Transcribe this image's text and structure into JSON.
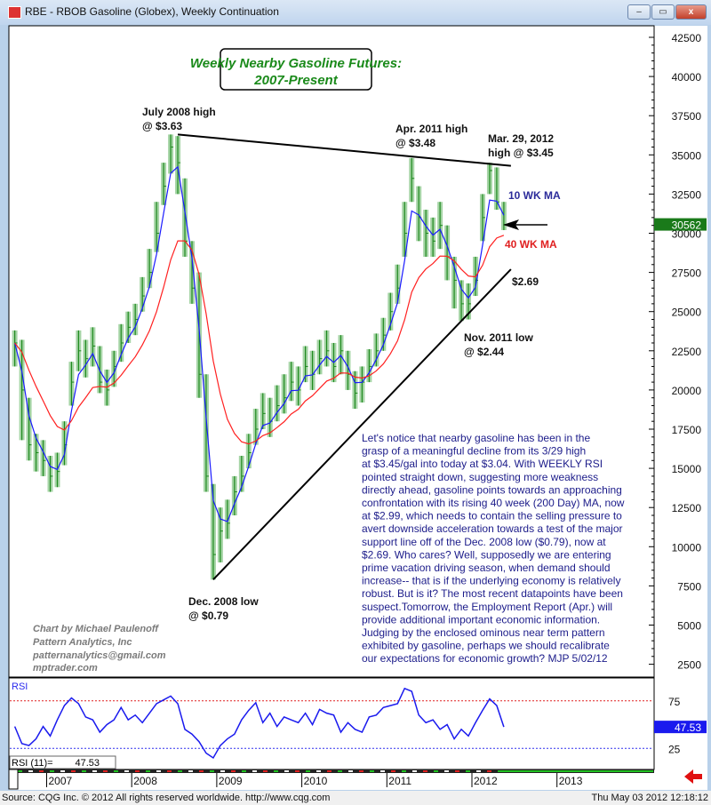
{
  "window": {
    "title": "RBE - RBOB Gasoline (Globex), Weekly Continuation",
    "minimize": "–",
    "maximize": "▭",
    "close": "x"
  },
  "title_box": {
    "line1": "Weekly Nearby Gasoline Futures:",
    "line2": "2007-Present"
  },
  "annotations": {
    "jul2008_1": "July 2008 high",
    "jul2008_2": "@ $3.63",
    "apr2011_1": "Apr. 2011 high",
    "apr2011_2": "@ $3.48",
    "mar2012_1": "Mar. 29, 2012",
    "mar2012_2": "high @ $3.45",
    "ma10": "10 WK MA",
    "ma40": "40 WK MA",
    "support": "$2.69",
    "nov2011_1": "Nov. 2011 low",
    "nov2011_2": "@ $2.44",
    "dec2008_1": "Dec. 2008 low",
    "dec2008_2": "@ $0.79"
  },
  "credits": [
    "Chart by Michael Paulenoff",
    "Pattern Analytics, Inc",
    "patternanalytics@gmail.com",
    "mptrader.com"
  ],
  "commentary": [
    "Let's notice that nearby gasoline has been in the",
    "grasp of a meaningful decline from its 3/29 high",
    "at $3.45/gal into today at $3.04. With WEEKLY RSI",
    "pointed straight down, suggesting more weakness",
    "directly ahead, gasoline points towards an approaching",
    "confrontation with its rising 40 week (200 Day) MA, now",
    "at $2.99, which needs to contain the selling pressure to",
    "avert downside acceleration towards a test of the major",
    "support line off of the Dec. 2008 low ($0.79), now at",
    "$2.69. Who cares? Well, supposedly we are entering",
    "prime vacation driving season, when demand should",
    "increase-- that is if the underlying economy is relatively",
    "robust. But is it? The most recent datapoints have been",
    "suspect.Tomorrow, the Employment Report (Apr.) will",
    "provide additional important economic information.",
    "Judging by the enclosed ominous near term pattern",
    "exhibited by gasoline, perhaps we should recalibrate",
    "our expectations for economic growth? MJP  5/02/12"
  ],
  "status": {
    "source": "Source: CQG Inc. © 2012 All rights reserved worldwide. http://www.cqg.com",
    "datetime": "Thu May 03 2012 12:18:12"
  },
  "colors": {
    "bars": "#1f8a1f",
    "bar_fill": "#8fc98f",
    "ma10": "#1a1aff",
    "ma40": "#ff2020",
    "rsi": "#1a1aee",
    "last_price_box": "#1a7a1a",
    "rsi_box": "#1a1aee"
  },
  "chart_data": [
    {
      "type": "ohlc",
      "title": "RBE - RBOB Gasoline (Globex), Weekly Continuation",
      "interval": "weekly (values shown monthly)",
      "ylim": [
        2500,
        42500
      ],
      "y_ticks": [
        "42500",
        "40000",
        "37500",
        "35000",
        "32500",
        "30000",
        "27500",
        "25000",
        "22500",
        "20000",
        "17500",
        "15000",
        "12500",
        "10000",
        "7500",
        "5000",
        "2500"
      ],
      "x_ticks": [
        "2007",
        "2008",
        "2009",
        "2010",
        "2011",
        "2012",
        "2013"
      ],
      "last_price": "30562",
      "dates": [
        "2006-08",
        "2006-09",
        "2006-10",
        "2006-11",
        "2006-12",
        "2007-01",
        "2007-02",
        "2007-03",
        "2007-04",
        "2007-05",
        "2007-06",
        "2007-07",
        "2007-08",
        "2007-09",
        "2007-10",
        "2007-11",
        "2007-12",
        "2008-01",
        "2008-02",
        "2008-03",
        "2008-04",
        "2008-05",
        "2008-06",
        "2008-07",
        "2008-08",
        "2008-09",
        "2008-10",
        "2008-11",
        "2008-12",
        "2009-01",
        "2009-02",
        "2009-03",
        "2009-04",
        "2009-05",
        "2009-06",
        "2009-07",
        "2009-08",
        "2009-09",
        "2009-10",
        "2009-11",
        "2009-12",
        "2010-01",
        "2010-02",
        "2010-03",
        "2010-04",
        "2010-05",
        "2010-06",
        "2010-07",
        "2010-08",
        "2010-09",
        "2010-10",
        "2010-11",
        "2010-12",
        "2011-01",
        "2011-02",
        "2011-03",
        "2011-04",
        "2011-05",
        "2011-06",
        "2011-07",
        "2011-08",
        "2011-09",
        "2011-10",
        "2011-11",
        "2011-12",
        "2012-01",
        "2012-02",
        "2012-03",
        "2012-04",
        "2012-05"
      ],
      "close": [
        23000,
        20000,
        16500,
        16000,
        15500,
        14500,
        14800,
        16500,
        20500,
        22500,
        22000,
        22800,
        20500,
        20000,
        21500,
        23000,
        24000,
        24500,
        26000,
        27500,
        30000,
        33000,
        35500,
        34500,
        29500,
        26500,
        21000,
        14500,
        9500,
        11000,
        11500,
        13500,
        14500,
        16000,
        17500,
        18500,
        18000,
        19000,
        19500,
        20500,
        20000,
        21500,
        21000,
        22000,
        22500,
        21500,
        22500,
        21000,
        19800,
        20500,
        21500,
        22500,
        23500,
        25000,
        26500,
        30000,
        33500,
        31000,
        30000,
        29500,
        30500,
        28500,
        27000,
        25500,
        25500,
        27000,
        31000,
        34000,
        32000,
        30562
      ],
      "high": [
        23800,
        23200,
        19500,
        17200,
        16800,
        15800,
        16000,
        18000,
        21800,
        23800,
        23200,
        24000,
        22800,
        21300,
        22500,
        24200,
        25000,
        25500,
        27200,
        29000,
        32000,
        34500,
        36300,
        36200,
        33500,
        29500,
        27500,
        21000,
        14000,
        12500,
        13000,
        14500,
        15800,
        17200,
        18800,
        19800,
        19500,
        20300,
        21000,
        21800,
        21500,
        22800,
        22500,
        23200,
        23800,
        23000,
        23500,
        22500,
        21200,
        21500,
        22600,
        23600,
        24600,
        26200,
        28000,
        32000,
        34800,
        33000,
        31500,
        31000,
        32000,
        30500,
        28500,
        27000,
        26800,
        28500,
        32500,
        34500,
        34200,
        32000
      ],
      "low": [
        21500,
        16800,
        15500,
        14800,
        14500,
        13500,
        13800,
        15200,
        19000,
        21200,
        20800,
        21500,
        19800,
        19000,
        20200,
        21800,
        23000,
        23500,
        25000,
        26500,
        28800,
        31800,
        33800,
        32500,
        28500,
        25500,
        19500,
        13500,
        7900,
        9000,
        10500,
        12000,
        13500,
        15000,
        16500,
        17500,
        17000,
        18000,
        18500,
        19300,
        19000,
        20500,
        20000,
        21000,
        21500,
        20500,
        21000,
        20000,
        18800,
        19200,
        20500,
        21500,
        22500,
        23800,
        25500,
        28500,
        32000,
        29500,
        28500,
        28500,
        29000,
        27000,
        25200,
        24400,
        24500,
        26000,
        29500,
        32500,
        31500,
        30200
      ],
      "moving_averages": [
        {
          "name": "10 WK MA",
          "weeks": 10
        },
        {
          "name": "40 WK MA",
          "weeks": 40
        }
      ],
      "trendlines": [
        {
          "from": [
            "2008-07",
            36300
          ],
          "to": [
            "2012-06",
            34300
          ]
        },
        {
          "from": [
            "2008-12",
            7900
          ],
          "to": [
            "2012-06",
            27700
          ]
        }
      ]
    },
    {
      "type": "line",
      "title": "RSI",
      "legend": "RSI (11)=",
      "last_value": "47.53",
      "ylim": [
        0,
        100
      ],
      "y_ticks": [
        "75",
        "25"
      ],
      "reference_lines": [
        75,
        25
      ],
      "dates_same_as_price": true,
      "values": [
        48,
        30,
        28,
        35,
        48,
        38,
        55,
        70,
        78,
        72,
        58,
        55,
        42,
        50,
        55,
        68,
        55,
        60,
        52,
        62,
        72,
        76,
        80,
        72,
        45,
        40,
        32,
        20,
        15,
        28,
        35,
        40,
        55,
        65,
        73,
        52,
        62,
        48,
        58,
        55,
        52,
        62,
        50,
        66,
        62,
        60,
        42,
        52,
        45,
        42,
        58,
        60,
        68,
        70,
        72,
        88,
        85,
        60,
        52,
        55,
        45,
        50,
        35,
        45,
        38,
        52,
        65,
        77,
        70,
        47.53
      ]
    }
  ]
}
